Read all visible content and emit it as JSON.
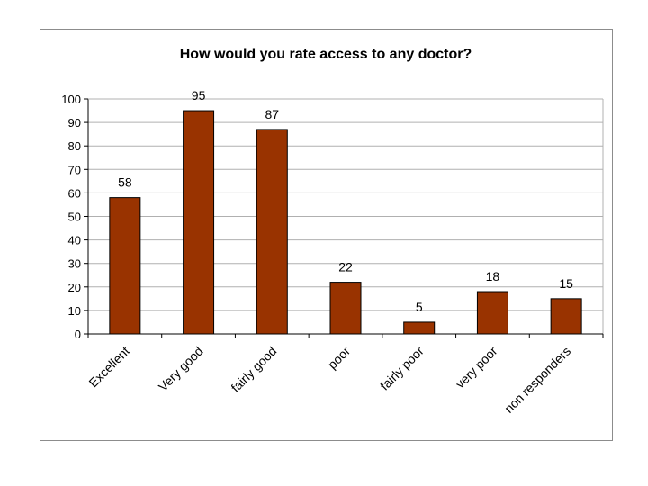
{
  "chart_data": {
    "type": "bar",
    "title": "How would you rate access to any doctor?",
    "categories": [
      "Excellent",
      "Very good",
      "fairly good",
      "poor",
      "fairly poor",
      "very poor",
      "non responders"
    ],
    "values": [
      58,
      95,
      87,
      22,
      5,
      18,
      15
    ],
    "data_labels": [
      "58",
      "95",
      "87",
      "22",
      "5",
      "18",
      "15"
    ],
    "xlabel": "",
    "ylabel": "",
    "ylim": [
      0,
      100
    ],
    "yticks": [
      0,
      10,
      20,
      30,
      40,
      50,
      60,
      70,
      80,
      90,
      100
    ],
    "grid": true,
    "legend": "none",
    "colors": {
      "bar_fill": "#993300",
      "bar_stroke": "#000000",
      "grid": "#b0b0b0",
      "axis": "#000000",
      "frame": "#8c8c8c"
    }
  }
}
